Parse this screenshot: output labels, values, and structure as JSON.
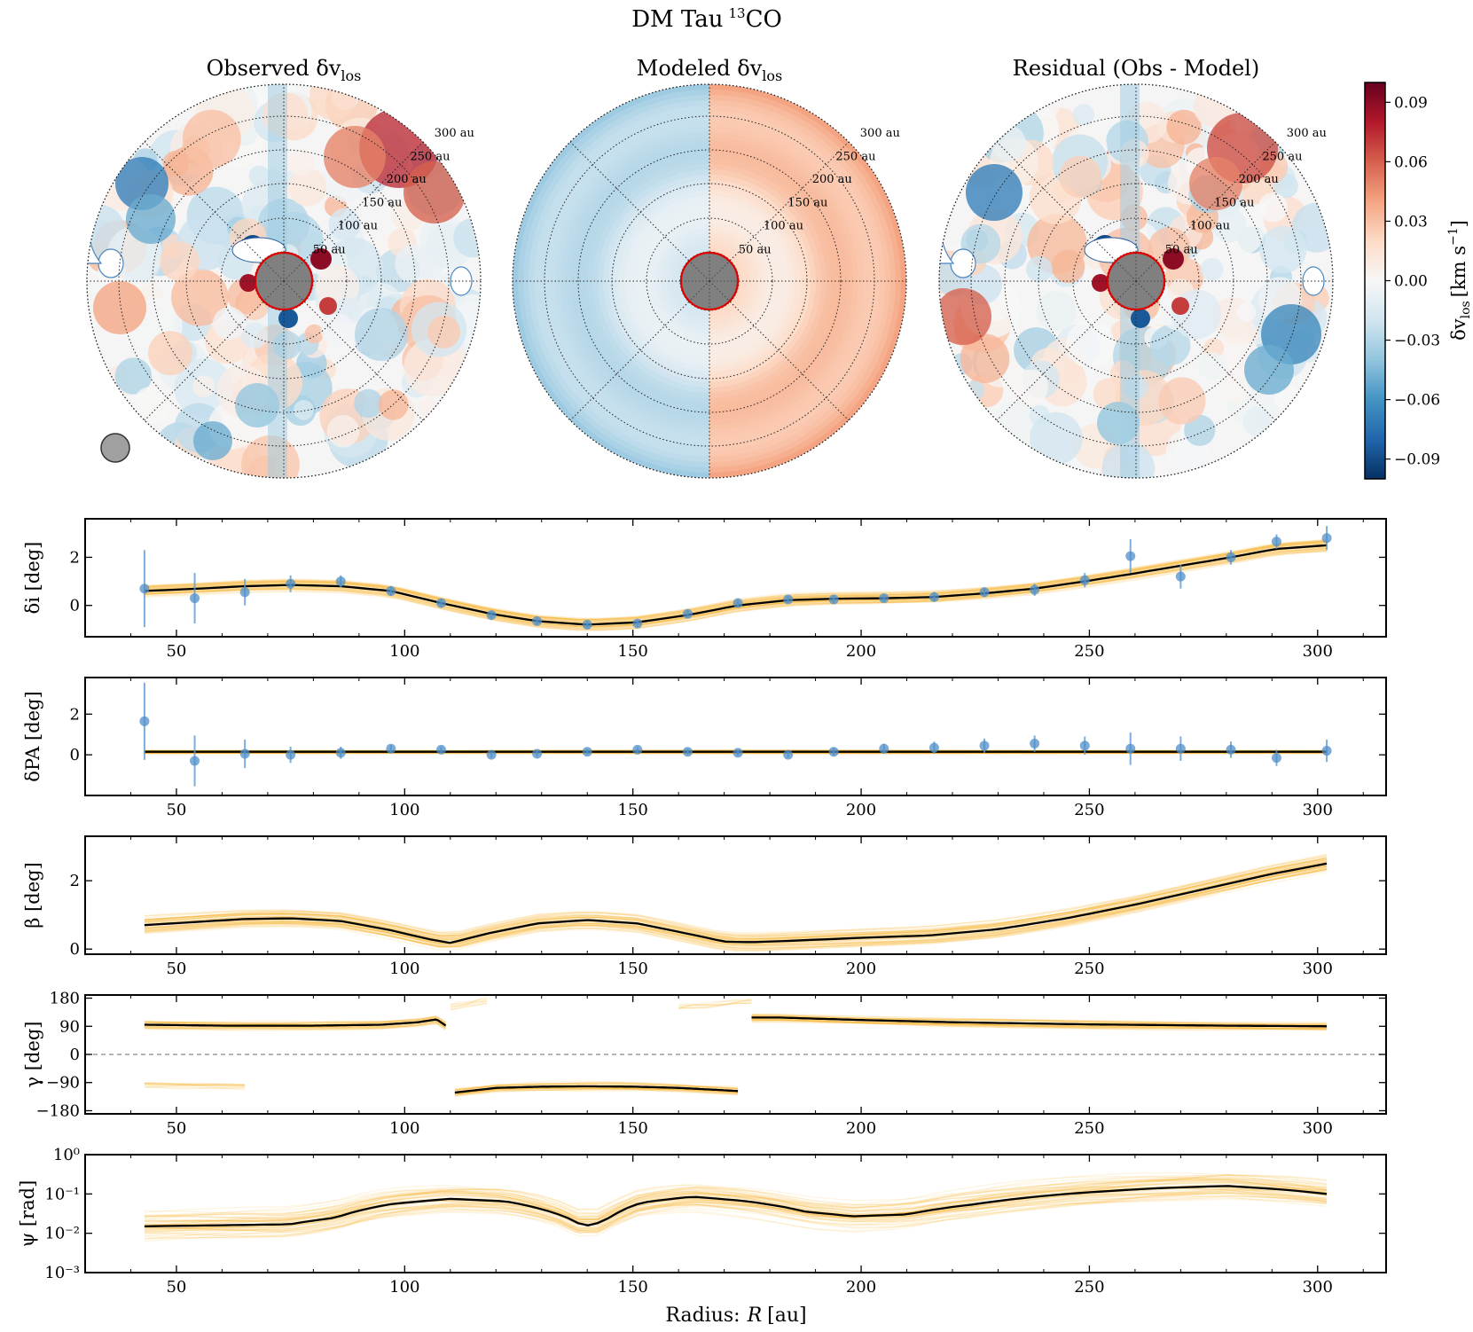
{
  "figure": {
    "title": "DM Tau",
    "title_iso": "13",
    "title_mol": "CO"
  },
  "polar_panels": [
    {
      "title_main": "Observed δv",
      "title_sub": "los",
      "rings": [
        "50 au",
        "100 au",
        "150 au",
        "200 au",
        "250 au",
        "300 au"
      ],
      "has_beam": true
    },
    {
      "title_main": "Modeled δv",
      "title_sub": "los",
      "rings": [
        "50 au",
        "100 au",
        "150 au",
        "200 au",
        "250 au",
        "300 au"
      ],
      "has_beam": false
    },
    {
      "title_main": "Residual (Obs - Model)",
      "title_sub": "",
      "rings": [
        "50 au",
        "100 au",
        "150 au",
        "200 au",
        "250 au",
        "300 au"
      ],
      "has_beam": false
    }
  ],
  "colorbar": {
    "label_main": "δv",
    "label_sub": "los",
    "label_unit": "[km s",
    "label_exp": "−1",
    "label_close": "]",
    "range": [
      -0.1,
      0.1
    ],
    "ticks": [
      "0.09",
      "0.06",
      "0.03",
      "0.00",
      "−0.03",
      "−0.06",
      "−0.09"
    ],
    "tick_values": [
      0.09,
      0.06,
      0.03,
      0.0,
      -0.03,
      -0.06,
      -0.09
    ],
    "colors": [
      "#67001f",
      "#b2182b",
      "#d6604d",
      "#f4a582",
      "#fddbc7",
      "#f7f7f7",
      "#d1e5f0",
      "#92c5de",
      "#4393c3",
      "#2166ac",
      "#053061"
    ]
  },
  "xaxis": {
    "label_prefix": "Radius:",
    "label_var": "R",
    "label_unit": "[au]",
    "range": [
      30,
      315
    ],
    "ticks": [
      "50",
      "100",
      "150",
      "200",
      "250",
      "300"
    ],
    "tick_values": [
      50,
      100,
      150,
      200,
      250,
      300
    ]
  },
  "chart_data": [
    {
      "type": "line",
      "id": "delta-i",
      "ylabel": "δi [deg]",
      "ylim": [
        -1.3,
        3.6
      ],
      "yticks": [
        "2",
        "0"
      ],
      "ytick_values": [
        2,
        0
      ],
      "fit_line": {
        "x": [
          43,
          55,
          65,
          75,
          86,
          97,
          108,
          119,
          129,
          140,
          151,
          162,
          173,
          184,
          194,
          205,
          216,
          227,
          238,
          249,
          259,
          270,
          281,
          291,
          302
        ],
        "y": [
          0.6,
          0.7,
          0.8,
          0.85,
          0.8,
          0.6,
          0.1,
          -0.35,
          -0.65,
          -0.8,
          -0.7,
          -0.4,
          0.0,
          0.22,
          0.28,
          0.3,
          0.35,
          0.5,
          0.7,
          1.0,
          1.3,
          1.65,
          2.0,
          2.35,
          2.5
        ]
      },
      "points": {
        "x": [
          43,
          54,
          65,
          75,
          86,
          97,
          108,
          119,
          129,
          140,
          151,
          162,
          173,
          184,
          194,
          205,
          216,
          227,
          238,
          249,
          259,
          270,
          281,
          291,
          302
        ],
        "y": [
          0.7,
          0.3,
          0.55,
          0.9,
          1.0,
          0.6,
          0.1,
          -0.4,
          -0.65,
          -0.8,
          -0.75,
          -0.35,
          0.1,
          0.25,
          0.25,
          0.3,
          0.35,
          0.55,
          0.65,
          1.05,
          2.05,
          1.2,
          2.0,
          2.65,
          2.8
        ],
        "err": [
          1.6,
          1.05,
          0.55,
          0.35,
          0.25,
          0.2,
          0.18,
          0.15,
          0.15,
          0.15,
          0.15,
          0.15,
          0.15,
          0.15,
          0.15,
          0.15,
          0.2,
          0.2,
          0.25,
          0.3,
          0.7,
          0.5,
          0.3,
          0.3,
          0.5
        ]
      },
      "band_halfwidth": 0.3
    },
    {
      "type": "line",
      "id": "delta-pa",
      "ylabel": "δPA [deg]",
      "ylim": [
        -2.0,
        3.8
      ],
      "yticks": [
        "2",
        "0"
      ],
      "ytick_values": [
        2,
        0
      ],
      "fit_line": {
        "x": [
          43,
          302
        ],
        "y": [
          0.15,
          0.15
        ]
      },
      "points": {
        "x": [
          43,
          54,
          65,
          75,
          86,
          97,
          108,
          119,
          129,
          140,
          151,
          162,
          173,
          184,
          194,
          205,
          216,
          227,
          238,
          249,
          259,
          270,
          281,
          291,
          302
        ],
        "y": [
          1.65,
          -0.3,
          0.05,
          0.0,
          0.1,
          0.3,
          0.25,
          0.0,
          0.05,
          0.15,
          0.25,
          0.15,
          0.1,
          0.0,
          0.15,
          0.3,
          0.35,
          0.45,
          0.55,
          0.45,
          0.3,
          0.3,
          0.25,
          -0.15,
          0.2
        ],
        "err": [
          1.9,
          1.25,
          0.7,
          0.4,
          0.3,
          0.18,
          0.15,
          0.15,
          0.15,
          0.15,
          0.15,
          0.15,
          0.15,
          0.15,
          0.2,
          0.25,
          0.3,
          0.35,
          0.4,
          0.45,
          0.8,
          0.6,
          0.4,
          0.4,
          0.55
        ]
      },
      "band_halfwidth": 0.12
    },
    {
      "type": "line",
      "id": "beta",
      "ylabel": "β [deg]",
      "ylim": [
        -0.15,
        3.3
      ],
      "yticks": [
        "2",
        "0"
      ],
      "ytick_values": [
        2,
        0
      ],
      "fit_line": {
        "x": [
          43,
          55,
          65,
          75,
          86,
          97,
          105,
          110,
          118,
          129,
          140,
          151,
          162,
          170,
          176,
          186,
          200,
          215,
          230,
          245,
          260,
          275,
          290,
          302
        ],
        "y": [
          0.7,
          0.8,
          0.88,
          0.9,
          0.82,
          0.55,
          0.3,
          0.18,
          0.45,
          0.75,
          0.85,
          0.75,
          0.45,
          0.22,
          0.2,
          0.25,
          0.33,
          0.4,
          0.58,
          0.9,
          1.3,
          1.75,
          2.2,
          2.5
        ]
      },
      "band_halfwidth": 0.3
    },
    {
      "type": "line",
      "id": "gamma",
      "ylabel": "γ [deg]",
      "ylim": [
        -190,
        190
      ],
      "yticks": [
        "180",
        "90",
        "0",
        "−90",
        "−180"
      ],
      "ytick_values": [
        180,
        90,
        0,
        -90,
        -180
      ],
      "zero_line": true,
      "segments": [
        {
          "x": [
            43,
            60,
            80,
            95,
            103,
            107,
            109
          ],
          "y": [
            95,
            92,
            92,
            95,
            103,
            112,
            92
          ]
        },
        {
          "x": [
            111,
            120,
            130,
            140,
            150,
            160,
            168,
            173
          ],
          "y": [
            -122,
            -107,
            -103,
            -102,
            -103,
            -107,
            -113,
            -117
          ]
        },
        {
          "x": [
            176,
            182,
            200,
            220,
            250,
            280,
            302
          ],
          "y": [
            118,
            118,
            110,
            103,
            96,
            92,
            90
          ]
        }
      ],
      "band_halfwidth": 18
    },
    {
      "type": "line",
      "id": "psi",
      "ylabel": "ψ [rad]",
      "yscale": "log",
      "ylim": [
        0.001,
        1
      ],
      "yticks": [
        "10⁰",
        "10⁻¹",
        "10⁻²",
        "10⁻³"
      ],
      "ytick_values": [
        1,
        0.1,
        0.01,
        0.001
      ],
      "fit_line": {
        "x": [
          43,
          60,
          75,
          85,
          97,
          110,
          122,
          132,
          138,
          141,
          145,
          152,
          163,
          175,
          188,
          198,
          210,
          225,
          245,
          265,
          280,
          292,
          302
        ],
        "y": [
          0.015,
          0.016,
          0.017,
          0.025,
          0.055,
          0.075,
          0.065,
          0.035,
          0.018,
          0.015,
          0.025,
          0.06,
          0.085,
          0.065,
          0.035,
          0.027,
          0.03,
          0.055,
          0.1,
          0.14,
          0.16,
          0.13,
          0.1
        ]
      },
      "band_factor": 3.0
    }
  ]
}
